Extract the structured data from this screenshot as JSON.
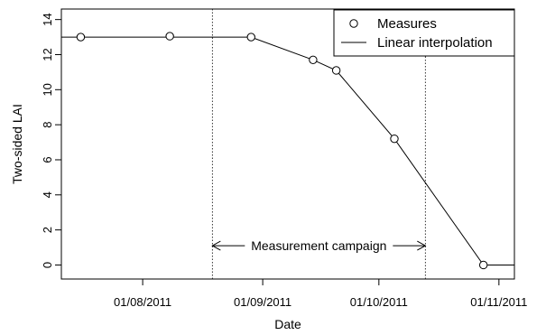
{
  "chart_data": {
    "type": "line",
    "xlabel": "Date",
    "ylabel": "Two-sided LAI",
    "xlim": [
      "2011-07-11",
      "2011-11-05"
    ],
    "ylim": [
      -0.8,
      14.6
    ],
    "x_ticks": [
      {
        "date": "2011-08-01",
        "label": "01/08/2011"
      },
      {
        "date": "2011-09-01",
        "label": "01/09/2011"
      },
      {
        "date": "2011-10-01",
        "label": "01/10/2011"
      },
      {
        "date": "2011-11-01",
        "label": "01/11/2011"
      }
    ],
    "y_ticks": [
      0,
      2,
      4,
      6,
      8,
      10,
      12,
      14
    ],
    "series": [
      {
        "name": "Measures",
        "style": "points",
        "marker": "open-circle",
        "x": [
          "2011-07-16",
          "2011-08-08",
          "2011-08-29",
          "2011-09-14",
          "2011-09-20",
          "2011-10-05",
          "2011-10-28"
        ],
        "y": [
          13.0,
          13.05,
          13.0,
          11.7,
          11.1,
          7.2,
          0.0
        ]
      },
      {
        "name": "Linear interpolation",
        "style": "line",
        "x": [
          "2011-07-11",
          "2011-08-29",
          "2011-09-14",
          "2011-09-20",
          "2011-10-05",
          "2011-10-28",
          "2011-11-05"
        ],
        "y": [
          13.0,
          13.0,
          11.7,
          11.1,
          7.2,
          0.0,
          0.0
        ]
      }
    ],
    "annotations": [
      {
        "type": "bracket",
        "text": "Measurement campaign",
        "x_start": "2011-08-19",
        "x_end": "2011-10-13",
        "y": 1.1,
        "vertical_dotted_lines": true
      }
    ],
    "legend": {
      "position": "top-right",
      "entries": [
        {
          "label": "Measures",
          "symbol": "open-circle"
        },
        {
          "label": "Linear interpolation",
          "symbol": "line"
        }
      ]
    },
    "grid": false,
    "colors": {
      "line": "#000000",
      "marker": "#000000",
      "background": "#ffffff"
    }
  }
}
